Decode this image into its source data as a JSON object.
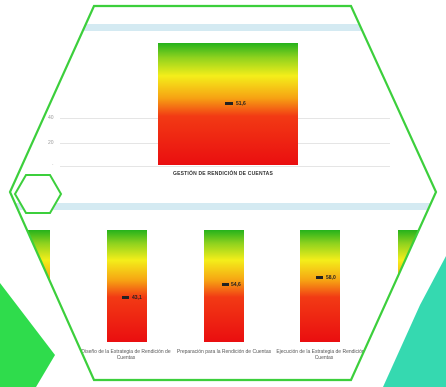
{
  "colors": {
    "hex_outline": "#3ccf3c",
    "corner_green_left": "#2fdc4c",
    "corner_teal_right": "#35d9b0",
    "band": "#d4eaf2",
    "marker": "#222222"
  },
  "chart_data": [
    {
      "type": "bar",
      "title": "",
      "xlabel": "",
      "ylabel": "",
      "categories": [
        "GESTIÓN DE RENDICIÓN DE CUENTAS"
      ],
      "values": [
        51.6
      ],
      "value_labels": [
        "51,6"
      ],
      "y_ticks": [
        "40",
        "20"
      ],
      "ylim": [
        0,
        100
      ],
      "grid": true
    },
    {
      "type": "bar",
      "title": "",
      "xlabel": "",
      "ylabel": "",
      "categories": [
        "Diseño de la Estrategia de Rendición de Cuentas",
        "Preparación para la Rendición de Cuentas",
        "Ejecución de la Estrategia de Rendición de Cuentas"
      ],
      "values": [
        43.1,
        54.6,
        58.0
      ],
      "value_labels": [
        "43,1",
        "54,6",
        "58,0"
      ],
      "ylim": [
        0,
        100
      ],
      "grid": false
    }
  ]
}
